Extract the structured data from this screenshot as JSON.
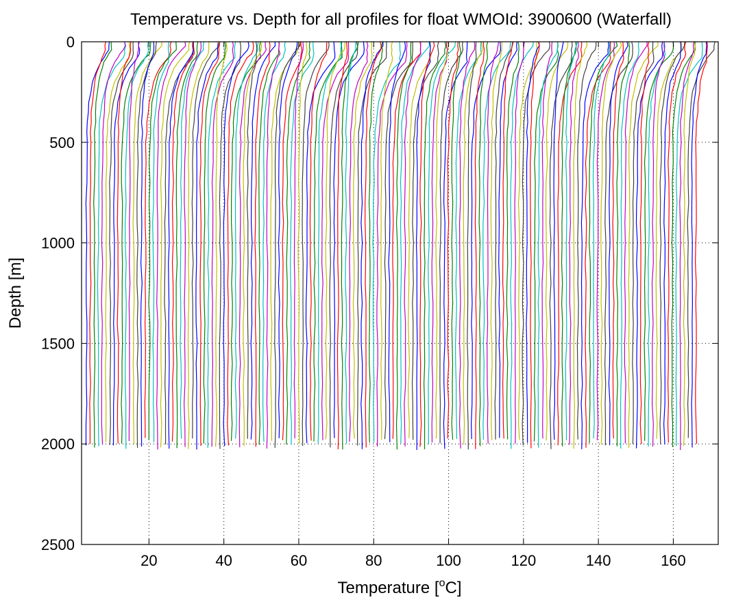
{
  "chart_data": {
    "type": "line",
    "title": "Temperature vs. Depth for all profiles for float WMOId: 3900600 (Waterfall)",
    "xlabel": "Temperature [",
    "xlabel_sup": "o",
    "xlabel_unit": "C]",
    "ylabel": "Depth [m]",
    "xlim": [
      2,
      172
    ],
    "ylim": [
      0,
      2500
    ],
    "y_reversed": true,
    "grid": true,
    "xticks": [
      20,
      40,
      60,
      80,
      100,
      120,
      140,
      160
    ],
    "xtick_labels": [
      "20",
      "40",
      "60",
      "80",
      "100",
      "120",
      "140",
      "160"
    ],
    "yticks": [
      0,
      500,
      1000,
      1500,
      2000,
      2500
    ],
    "ytick_labels": [
      "0",
      "500",
      "1000",
      "1500",
      "2000",
      "2500"
    ],
    "colors": [
      "#0000ff",
      "#ff0000",
      "#008000",
      "#00bfbf",
      "#bf00bf",
      "#bfbf00",
      "#404040"
    ],
    "profile_count": 156,
    "profile_offset_step": 1.05,
    "first_deep_temperature": 3.3,
    "surface_warming_range": [
      2,
      8
    ],
    "max_depth_range": [
      1970,
      2030
    ]
  }
}
